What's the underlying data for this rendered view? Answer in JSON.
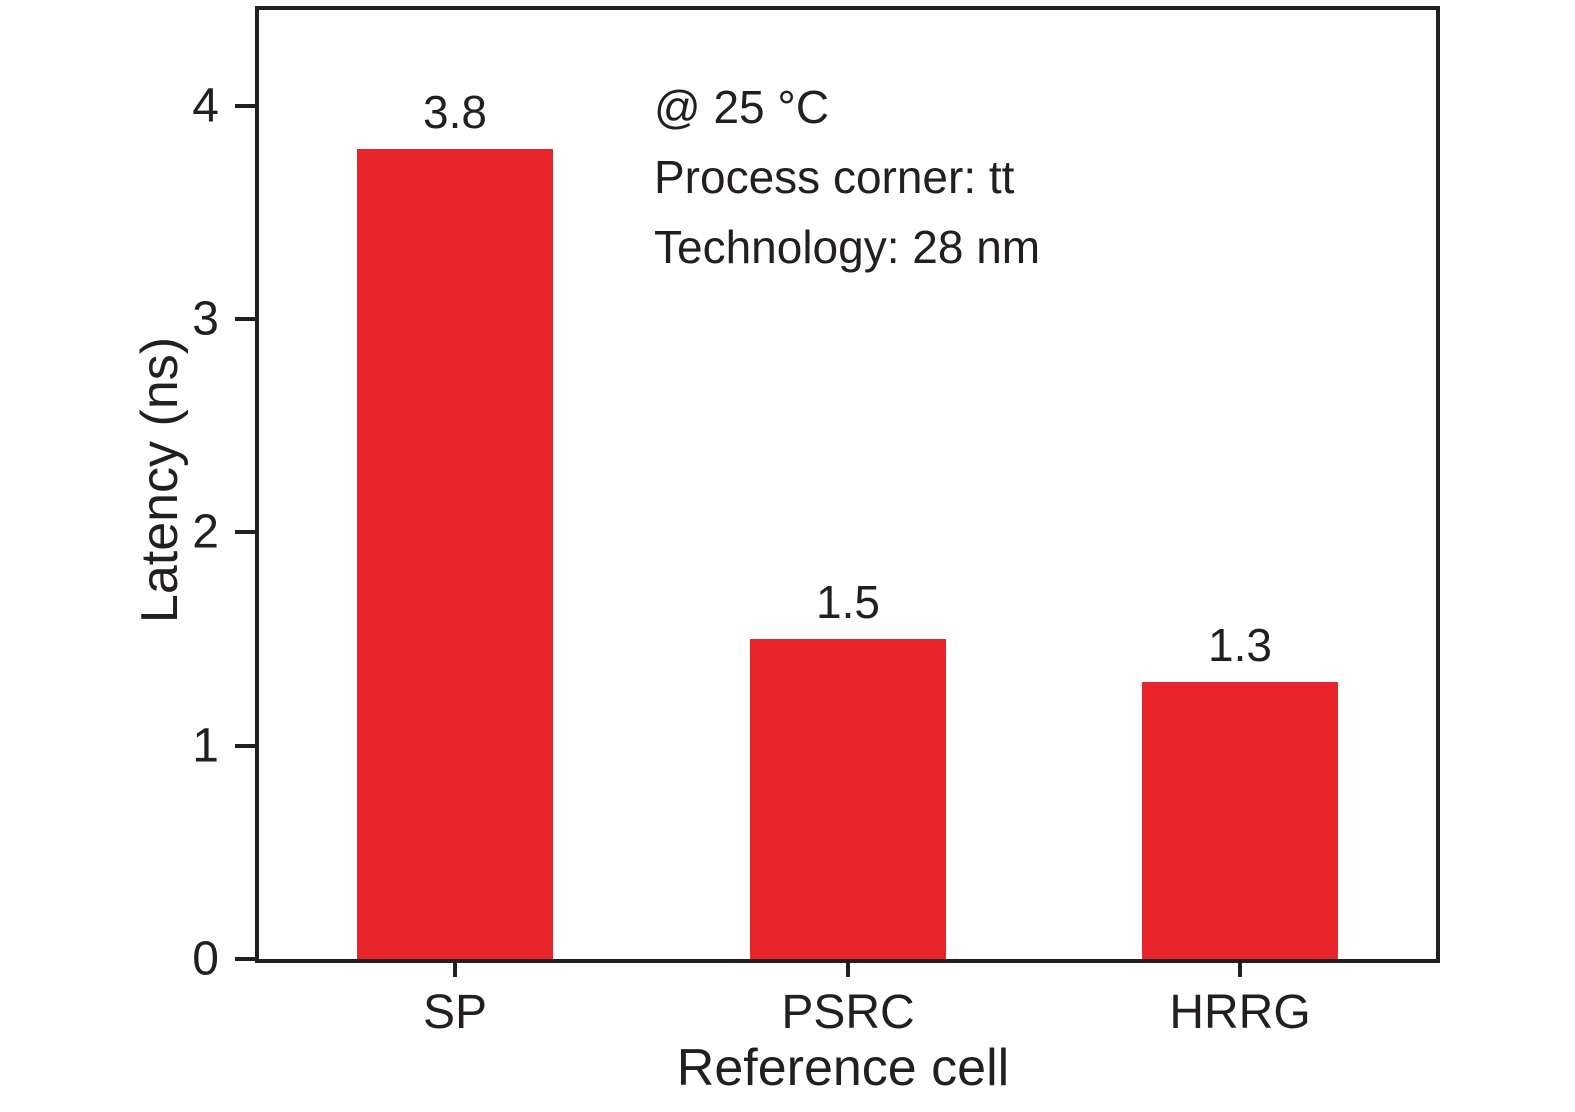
{
  "chart_data": {
    "type": "bar",
    "categories": [
      "SP",
      "PSRC",
      "HRRG"
    ],
    "values": [
      3.8,
      1.5,
      1.3
    ],
    "value_labels": [
      "3.8",
      "1.5",
      "1.3"
    ],
    "title": "",
    "xlabel": "Reference cell",
    "ylabel": "Latency (ns)",
    "ylim": [
      0,
      4.45
    ],
    "yticks": [
      0,
      1,
      2,
      3,
      4
    ],
    "bar_color": "#e8252a",
    "axis_color": "#231f20",
    "grid": false,
    "legend_position": "none",
    "annotations": [
      "@ 25 °C",
      "Process corner: tt",
      "Technology: 28 nm"
    ]
  }
}
